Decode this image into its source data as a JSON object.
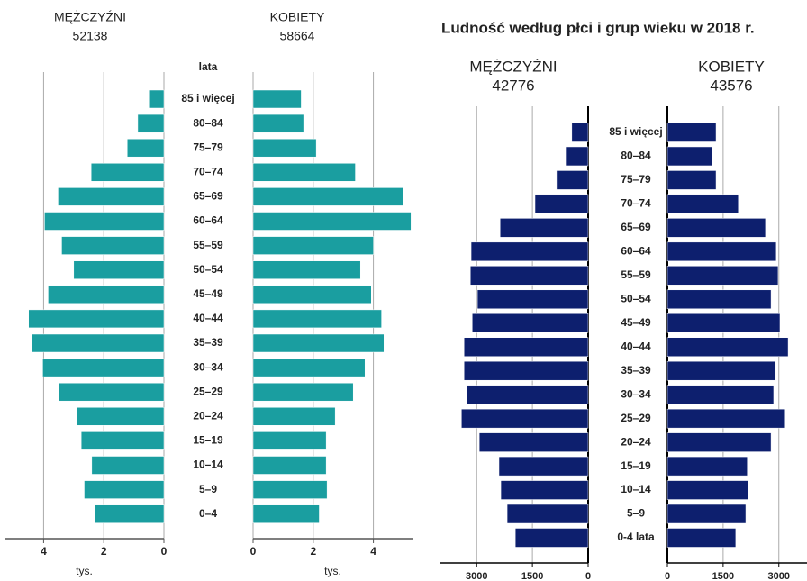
{
  "chart_data": [
    {
      "type": "pyramid",
      "category_axis_label": "lata",
      "categories": [
        "85 i więcej",
        "80–84",
        "75–79",
        "70–74",
        "65–69",
        "60–64",
        "55–59",
        "50–54",
        "45–49",
        "40–44",
        "35–39",
        "30–34",
        "25–29",
        "20–24",
        "15–19",
        "10–14",
        "5–9",
        "0–4"
      ],
      "series": [
        {
          "name": "MĘŻCZYŹNI",
          "total": 52138,
          "color": "#1a9ea0",
          "values": [
            0.5,
            0.87,
            1.22,
            2.42,
            3.52,
            3.97,
            3.4,
            3.0,
            3.85,
            4.5,
            4.4,
            4.03,
            3.5,
            2.9,
            2.75,
            2.4,
            2.65,
            2.3
          ]
        },
        {
          "name": "KOBIETY",
          "total": 58664,
          "color": "#1a9ea0",
          "values": [
            1.6,
            1.68,
            2.1,
            3.4,
            5.0,
            5.25,
            4.0,
            3.57,
            3.93,
            4.27,
            4.35,
            3.72,
            3.33,
            2.73,
            2.43,
            2.43,
            2.46,
            2.2
          ]
        }
      ],
      "xlabel": "tys.",
      "xlim": [
        0,
        5.3
      ],
      "xticks": [
        0,
        2,
        4
      ],
      "grid": true
    },
    {
      "type": "pyramid",
      "title": "Ludność według płci i grup wieku w 2018 r.",
      "categories": [
        "85 i więcej",
        "80–84",
        "75–79",
        "70–74",
        "65–69",
        "60–64",
        "55–59",
        "50–54",
        "45–49",
        "40–44",
        "35–39",
        "30–34",
        "25–29",
        "20–24",
        "15–19",
        "10–14",
        "5–9",
        "0-4 lata"
      ],
      "series": [
        {
          "name": "MĘŻCZYŹNI",
          "total": 42776,
          "color": "#0d1f6e",
          "values": [
            440,
            605,
            850,
            1430,
            2370,
            3150,
            3170,
            2980,
            3120,
            3340,
            3340,
            3270,
            3410,
            2930,
            2400,
            2350,
            2180,
            1960
          ]
        },
        {
          "name": "KOBIETY",
          "total": 43576,
          "color": "#0d1f6e",
          "values": [
            1310,
            1210,
            1310,
            1910,
            2640,
            2930,
            2980,
            2790,
            3030,
            3250,
            2910,
            2860,
            3170,
            2790,
            2150,
            2180,
            2110,
            1840
          ]
        }
      ],
      "xlim": [
        0,
        4000
      ],
      "xticks": [
        0,
        1500,
        3000
      ],
      "grid": true
    }
  ]
}
